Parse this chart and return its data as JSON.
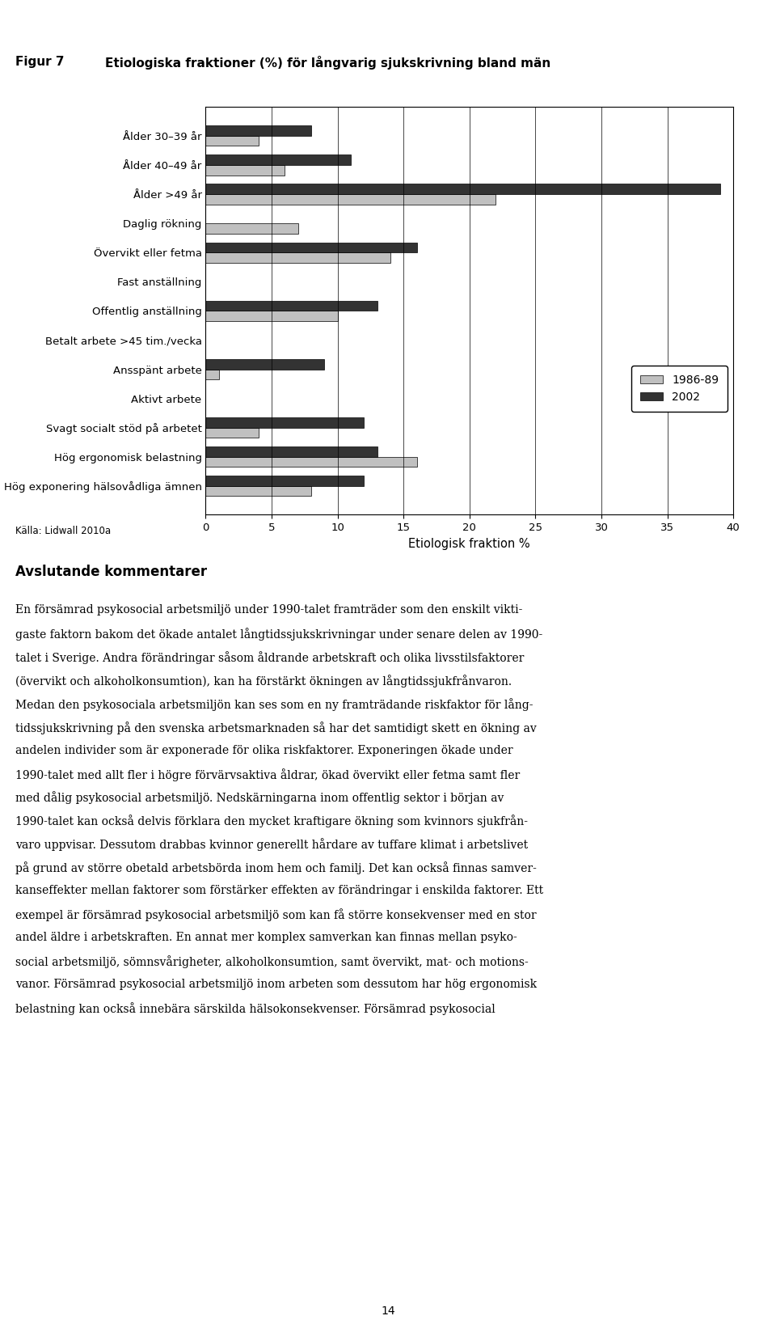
{
  "title_prefix": "Figur 7",
  "title": "Etiologiska fraktioner (%) för långvarig sjukskrivning bland män",
  "categories": [
    "Ålder 30–39 år",
    "Ålder 40–49 år",
    "Ålder >49 år",
    "Daglig rökning",
    "Övervikt eller fetma",
    "Fast anställning",
    "Offentlig anställning",
    "Betalt arbete >45 tim./vecka",
    "Ansspänt arbete",
    "Aktivt arbete",
    "Svagt socialt stöd på arbetet",
    "Hög ergonomisk belastning",
    "Hög exponering hälsovådliga ämnen"
  ],
  "values_1986": [
    4,
    6,
    22,
    7,
    14,
    0,
    10,
    0,
    1,
    0,
    4,
    16,
    8
  ],
  "values_2002": [
    8,
    11,
    39,
    0,
    16,
    0,
    13,
    0,
    9,
    0,
    12,
    13,
    12
  ],
  "color_1986": "#c0c0c0",
  "color_2002": "#333333",
  "xlabel": "Etiologisk fraktion %",
  "xlim": [
    0,
    40
  ],
  "xticks": [
    0,
    5,
    10,
    15,
    20,
    25,
    30,
    35,
    40
  ],
  "legend_labels": [
    "1986-89",
    "2002"
  ],
  "source_text": "Källa: Lidwall 2010a",
  "bar_height": 0.35,
  "body_text": [
    "Avslutande kommentarer",
    "",
    "En försämrad psykosocial arbetsmiljö under 1990-talet framträder som den enskilt vikti-",
    "gaste faktorn bakom det ökade antalet långtidssjukskrivningar under senare delen av 1990-",
    "talet i Sverige. Andra förändringar såsom åldrande arbetskraft och olika livsstilsfaktorer",
    "(övervikt och alkoholkonsumtion), kan ha förstärkt ökningen av långtidssjukfrånvaron.",
    "Medan den psykosociala arbetsmiljön kan ses som en ny framträdande riskfaktor för lång-",
    "tidssjukskrivning på den svenska arbetsmarknaden så har det samtidigt skett en ökning av",
    "andelen individer som är exponerade för olika riskfaktorer. Exponeringen ökade under",
    "1990-talet med allt fler i högre förvärvsaktiva åldrar, ökad övervikt eller fetma samt fler",
    "med dålig psykosocial arbetsmiljö. Nedskärningarna inom offentlig sektor i början av",
    "1990-talet kan också delvis förklara den mycket kraftigare ökning som kvinnors sjukfrån-",
    "varo uppvisar. Dessutom drabbas kvinnor generellt hårdare av tuffare klimat i arbetslivet",
    "på grund av större obetald arbetsbörda inom hem och familj. Det kan också finnas samver-",
    "kanseffekter mellan faktorer som förstärker effekten av förändringar i enskilda faktorer. Ett",
    "exempel är försämrad psykosocial arbetsmiljö som kan få större konsekvenser med en stor",
    "andel äldre i arbetskraften. En annat mer komplex samverkan kan finnas mellan psyko-",
    "social arbetsmiljö, sömnsvårigheter, alkoholkonsumtion, samt övervikt, mat- och motions-",
    "vanor. Försämrad psykosocial arbetsmiljö inom arbeten som dessutom har hög ergonomisk",
    "belastning kan också innebära särskilda hälsokonsekvenser. Försämrad psykosocial"
  ],
  "page_number": "14"
}
